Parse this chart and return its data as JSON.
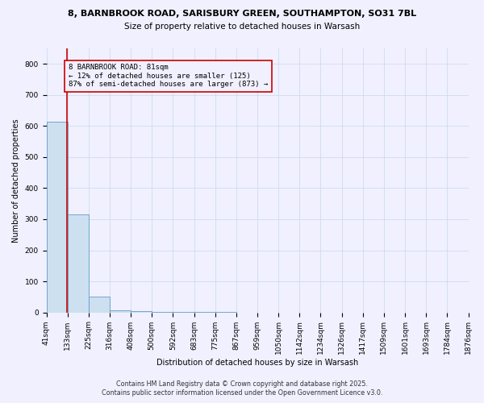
{
  "title_line1": "8, BARNBROOK ROAD, SARISBURY GREEN, SOUTHAMPTON, SO31 7BL",
  "title_line2": "Size of property relative to detached houses in Warsash",
  "xlabel": "Distribution of detached houses by size in Warsash",
  "ylabel": "Number of detached properties",
  "bar_values": [
    615,
    315,
    50,
    8,
    4,
    2,
    1,
    1,
    1,
    0,
    0,
    0,
    0,
    0,
    0,
    0,
    0,
    0,
    0,
    0
  ],
  "bin_labels": [
    "41sqm",
    "133sqm",
    "225sqm",
    "316sqm",
    "408sqm",
    "500sqm",
    "592sqm",
    "683sqm",
    "775sqm",
    "867sqm",
    "959sqm",
    "1050sqm",
    "1142sqm",
    "1234sqm",
    "1326sqm",
    "1417sqm",
    "1509sqm",
    "1601sqm",
    "1693sqm",
    "1784sqm",
    "1876sqm"
  ],
  "bar_color": "#cce0f0",
  "bar_edgecolor": "#6699cc",
  "grid_color": "#c8d8e8",
  "property_sqm": 81,
  "pct_smaller": 12,
  "n_smaller": 125,
  "pct_larger_semi": 87,
  "n_larger_semi": 873,
  "annotation_text_line1": "8 BARNBROOK ROAD: 81sqm",
  "annotation_text_line2": "← 12% of detached houses are smaller (125)",
  "annotation_text_line3": "87% of semi-detached houses are larger (873) →",
  "vline_color": "#cc0000",
  "annotation_box_edgecolor": "#cc0000",
  "ylim": [
    0,
    850
  ],
  "yticks": [
    0,
    100,
    200,
    300,
    400,
    500,
    600,
    700,
    800
  ],
  "footer_line1": "Contains HM Land Registry data © Crown copyright and database right 2025.",
  "footer_line2": "Contains public sector information licensed under the Open Government Licence v3.0.",
  "bg_color": "#f0f0ff",
  "title_fontsize": 8.0,
  "subtitle_fontsize": 7.5,
  "axis_label_fontsize": 7.0,
  "tick_fontsize": 6.5,
  "annotation_fontsize": 6.5,
  "footer_fontsize": 5.8
}
